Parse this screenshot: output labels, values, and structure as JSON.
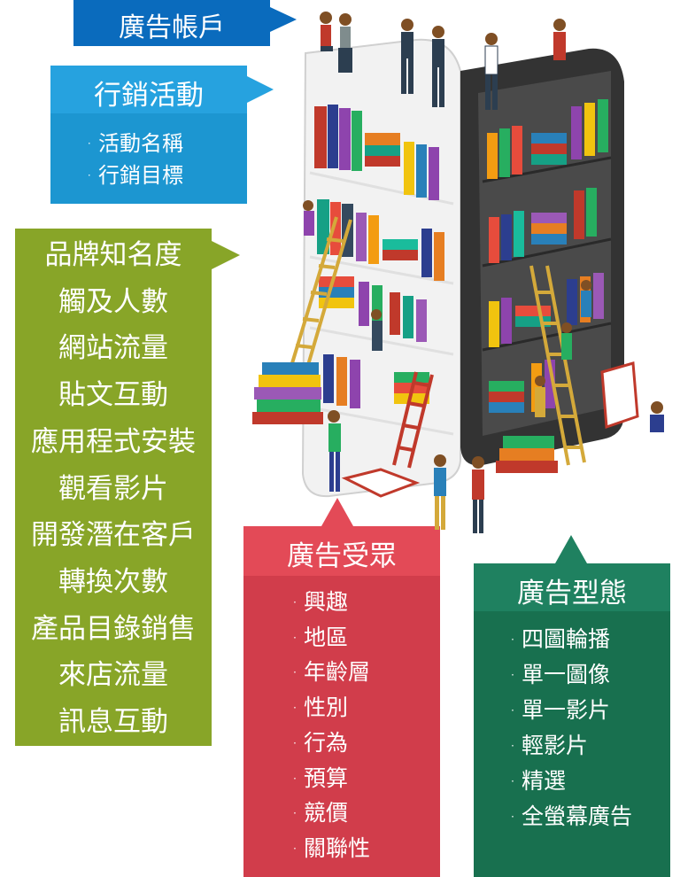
{
  "account": {
    "title": "廣告帳戶"
  },
  "campaign": {
    "title": "行銷活動",
    "items": [
      "活動名稱",
      "行銷目標"
    ]
  },
  "objectives": {
    "items": [
      "品牌知名度",
      "觸及人數",
      "網站流量",
      "貼文互動",
      "應用程式安裝",
      "觀看影片",
      "開發潛在客戶",
      "轉換次數",
      "產品目錄銷售",
      "來店流量",
      "訊息互動"
    ]
  },
  "audience": {
    "title": "廣告受眾",
    "items": [
      "興趣",
      "地區",
      "年齡層",
      "性別",
      "行為",
      "預算",
      "競價",
      "關聯性"
    ]
  },
  "formats": {
    "title": "廣告型態",
    "items": [
      "四圖輪播",
      "單一圖像",
      "單一影片",
      "輕影片",
      "精選",
      "全螢幕廣告"
    ]
  },
  "bullet": "·",
  "colors": {
    "account": "#0a6bbd",
    "campaign": "#26a2df",
    "objectives": "#88a528",
    "audience": "#e34a57",
    "formats": "#1f8160"
  },
  "illustration_icon": "smartphone-bookshelf-icon"
}
